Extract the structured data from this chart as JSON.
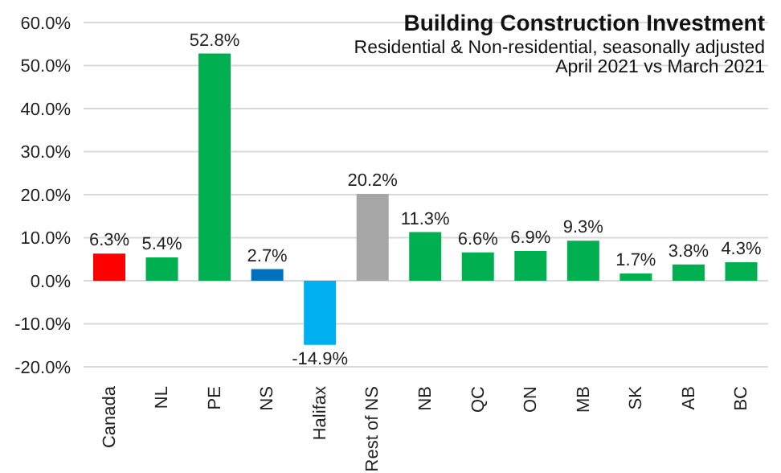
{
  "chart_data": {
    "type": "bar",
    "title": "Building Construction Investment",
    "subtitle": "Residential & Non-residential, seasonally adjusted",
    "annotations": [
      "April 2021 vs March 2021"
    ],
    "categories": [
      "Canada",
      "NL",
      "PE",
      "NS",
      "Halifax",
      "Rest of NS",
      "NB",
      "QC",
      "ON",
      "MB",
      "SK",
      "AB",
      "BC"
    ],
    "values": [
      6.3,
      5.4,
      52.8,
      2.7,
      -14.9,
      20.2,
      11.3,
      6.6,
      6.9,
      9.3,
      1.7,
      3.8,
      4.3
    ],
    "colors": [
      "#ff0000",
      "#00b050",
      "#00b050",
      "#0070c0",
      "#00b0f0",
      "#a6a6a6",
      "#00b050",
      "#00b050",
      "#00b050",
      "#00b050",
      "#00b050",
      "#00b050",
      "#00b050"
    ],
    "value_labels": [
      "6.3%",
      "5.4%",
      "52.8%",
      "2.7%",
      "-14.9%",
      "20.2%",
      "11.3%",
      "6.6%",
      "6.9%",
      "9.3%",
      "1.7%",
      "3.8%",
      "4.3%"
    ],
    "ylim": [
      -20,
      60
    ],
    "yticks": [
      {
        "value": -20,
        "label": "-20.0%"
      },
      {
        "value": -10,
        "label": "-10.0%"
      },
      {
        "value": 0,
        "label": "0.0%"
      },
      {
        "value": 10,
        "label": "10.0%"
      },
      {
        "value": 20,
        "label": "20.0%"
      },
      {
        "value": 30,
        "label": "30.0%"
      },
      {
        "value": 40,
        "label": "40.0%"
      },
      {
        "value": 50,
        "label": "50.0%"
      },
      {
        "value": 60,
        "label": "60.0%"
      }
    ],
    "grid": "y",
    "legend": false
  }
}
